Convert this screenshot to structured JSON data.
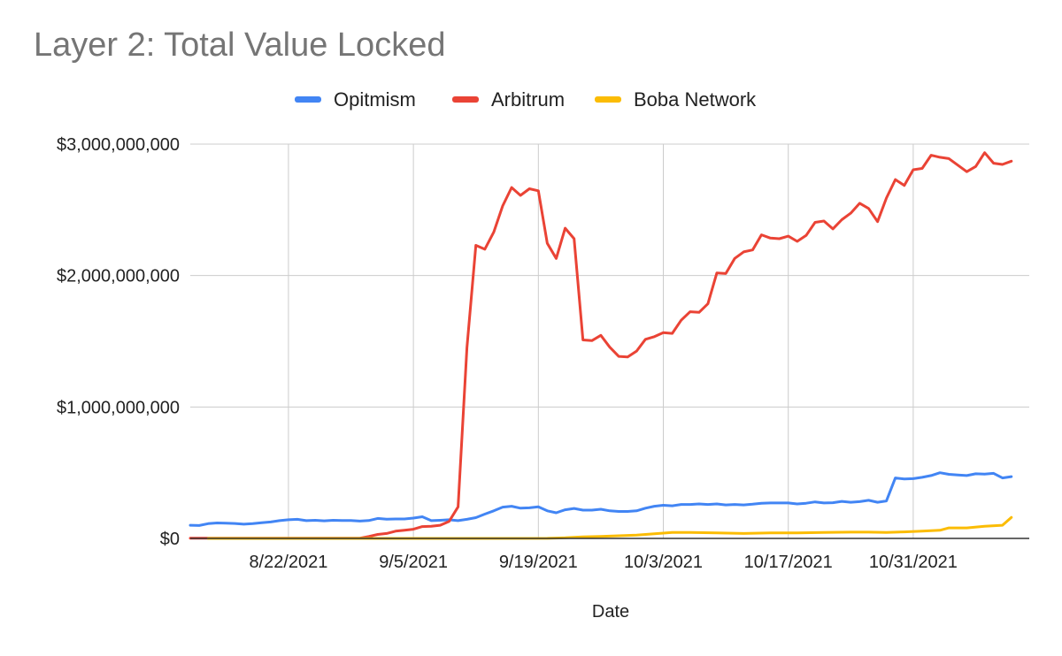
{
  "chart_data": {
    "type": "line",
    "title": "Layer 2: Total Value Locked",
    "xlabel": "Date",
    "ylabel": "",
    "x_start": "2021-08-11",
    "x_end": "2021-11-13",
    "ylim": [
      0,
      3000000000
    ],
    "y_ticks": [
      {
        "value": 0,
        "label": "$0"
      },
      {
        "value": 1000000000,
        "label": "$1,000,000,000"
      },
      {
        "value": 2000000000,
        "label": "$2,000,000,000"
      },
      {
        "value": 3000000000,
        "label": "$3,000,000,000"
      }
    ],
    "x_ticks": [
      {
        "date": "2021-08-22",
        "label": "8/22/2021"
      },
      {
        "date": "2021-09-05",
        "label": "9/5/2021"
      },
      {
        "date": "2021-09-19",
        "label": "9/19/2021"
      },
      {
        "date": "2021-10-03",
        "label": "10/3/2021"
      },
      {
        "date": "2021-10-17",
        "label": "10/17/2021"
      },
      {
        "date": "2021-10-31",
        "label": "10/31/2021"
      }
    ],
    "grid": true,
    "legend_position": "top",
    "series": [
      {
        "name": "Opitmism",
        "color": "#4285f4",
        "points": [
          [
            "2021-08-11",
            100000000
          ],
          [
            "2021-08-12",
            98000000
          ],
          [
            "2021-08-13",
            112000000
          ],
          [
            "2021-08-14",
            118000000
          ],
          [
            "2021-08-15",
            116000000
          ],
          [
            "2021-08-16",
            114000000
          ],
          [
            "2021-08-17",
            108000000
          ],
          [
            "2021-08-18",
            112000000
          ],
          [
            "2021-08-19",
            120000000
          ],
          [
            "2021-08-20",
            125000000
          ],
          [
            "2021-08-21",
            135000000
          ],
          [
            "2021-08-22",
            142000000
          ],
          [
            "2021-08-23",
            145000000
          ],
          [
            "2021-08-24",
            135000000
          ],
          [
            "2021-08-25",
            138000000
          ],
          [
            "2021-08-26",
            134000000
          ],
          [
            "2021-08-27",
            138000000
          ],
          [
            "2021-08-28",
            136000000
          ],
          [
            "2021-08-29",
            136000000
          ],
          [
            "2021-08-30",
            132000000
          ],
          [
            "2021-08-31",
            136000000
          ],
          [
            "2021-09-01",
            152000000
          ],
          [
            "2021-09-02",
            146000000
          ],
          [
            "2021-09-03",
            148000000
          ],
          [
            "2021-09-04",
            148000000
          ],
          [
            "2021-09-05",
            155000000
          ],
          [
            "2021-09-06",
            165000000
          ],
          [
            "2021-09-07",
            135000000
          ],
          [
            "2021-09-08",
            138000000
          ],
          [
            "2021-09-09",
            142000000
          ],
          [
            "2021-09-10",
            135000000
          ],
          [
            "2021-09-11",
            145000000
          ],
          [
            "2021-09-12",
            158000000
          ],
          [
            "2021-09-13",
            185000000
          ],
          [
            "2021-09-14",
            210000000
          ],
          [
            "2021-09-15",
            238000000
          ],
          [
            "2021-09-16",
            245000000
          ],
          [
            "2021-09-17",
            230000000
          ],
          [
            "2021-09-18",
            233000000
          ],
          [
            "2021-09-19",
            240000000
          ],
          [
            "2021-09-20",
            210000000
          ],
          [
            "2021-09-21",
            195000000
          ],
          [
            "2021-09-22",
            218000000
          ],
          [
            "2021-09-23",
            228000000
          ],
          [
            "2021-09-24",
            215000000
          ],
          [
            "2021-09-25",
            215000000
          ],
          [
            "2021-09-26",
            222000000
          ],
          [
            "2021-09-27",
            210000000
          ],
          [
            "2021-09-28",
            205000000
          ],
          [
            "2021-09-29",
            205000000
          ],
          [
            "2021-09-30",
            210000000
          ],
          [
            "2021-10-01",
            230000000
          ],
          [
            "2021-10-02",
            245000000
          ],
          [
            "2021-10-03",
            252000000
          ],
          [
            "2021-10-04",
            248000000
          ],
          [
            "2021-10-05",
            258000000
          ],
          [
            "2021-10-06",
            258000000
          ],
          [
            "2021-10-07",
            262000000
          ],
          [
            "2021-10-08",
            258000000
          ],
          [
            "2021-10-09",
            262000000
          ],
          [
            "2021-10-10",
            255000000
          ],
          [
            "2021-10-11",
            258000000
          ],
          [
            "2021-10-12",
            255000000
          ],
          [
            "2021-10-13",
            260000000
          ],
          [
            "2021-10-14",
            268000000
          ],
          [
            "2021-10-15",
            270000000
          ],
          [
            "2021-10-16",
            270000000
          ],
          [
            "2021-10-17",
            270000000
          ],
          [
            "2021-10-18",
            262000000
          ],
          [
            "2021-10-19",
            268000000
          ],
          [
            "2021-10-20",
            278000000
          ],
          [
            "2021-10-21",
            270000000
          ],
          [
            "2021-10-22",
            272000000
          ],
          [
            "2021-10-23",
            282000000
          ],
          [
            "2021-10-24",
            275000000
          ],
          [
            "2021-10-25",
            280000000
          ],
          [
            "2021-10-26",
            290000000
          ],
          [
            "2021-10-27",
            275000000
          ],
          [
            "2021-10-28",
            285000000
          ],
          [
            "2021-10-29",
            460000000
          ],
          [
            "2021-10-30",
            452000000
          ],
          [
            "2021-10-31",
            455000000
          ],
          [
            "2021-11-01",
            465000000
          ],
          [
            "2021-11-02",
            478000000
          ],
          [
            "2021-11-03",
            500000000
          ],
          [
            "2021-11-04",
            488000000
          ],
          [
            "2021-11-05",
            482000000
          ],
          [
            "2021-11-06",
            478000000
          ],
          [
            "2021-11-07",
            492000000
          ],
          [
            "2021-11-08",
            490000000
          ],
          [
            "2021-11-09",
            495000000
          ],
          [
            "2021-11-10",
            460000000
          ],
          [
            "2021-11-11",
            470000000
          ]
        ]
      },
      {
        "name": "Arbitrum",
        "color": "#ea4335",
        "points": [
          [
            "2021-08-11",
            2000000
          ],
          [
            "2021-08-12",
            2000000
          ],
          [
            "2021-08-13",
            2000000
          ],
          [
            "2021-08-14",
            2000000
          ],
          [
            "2021-08-15",
            2000000
          ],
          [
            "2021-08-16",
            2000000
          ],
          [
            "2021-08-17",
            2000000
          ],
          [
            "2021-08-18",
            2000000
          ],
          [
            "2021-08-19",
            2000000
          ],
          [
            "2021-08-20",
            2000000
          ],
          [
            "2021-08-21",
            2000000
          ],
          [
            "2021-08-22",
            2000000
          ],
          [
            "2021-08-23",
            2000000
          ],
          [
            "2021-08-24",
            2000000
          ],
          [
            "2021-08-25",
            2000000
          ],
          [
            "2021-08-26",
            2000000
          ],
          [
            "2021-08-27",
            2000000
          ],
          [
            "2021-08-28",
            2000000
          ],
          [
            "2021-08-29",
            2000000
          ],
          [
            "2021-08-30",
            2000000
          ],
          [
            "2021-08-31",
            15000000
          ],
          [
            "2021-09-01",
            30000000
          ],
          [
            "2021-09-02",
            38000000
          ],
          [
            "2021-09-03",
            55000000
          ],
          [
            "2021-09-04",
            62000000
          ],
          [
            "2021-09-05",
            70000000
          ],
          [
            "2021-09-06",
            90000000
          ],
          [
            "2021-09-07",
            92000000
          ],
          [
            "2021-09-08",
            100000000
          ],
          [
            "2021-09-09",
            130000000
          ],
          [
            "2021-09-10",
            240000000
          ],
          [
            "2021-09-11",
            1450000000
          ],
          [
            "2021-09-12",
            2230000000
          ],
          [
            "2021-09-13",
            2200000000
          ],
          [
            "2021-09-14",
            2330000000
          ],
          [
            "2021-09-15",
            2530000000
          ],
          [
            "2021-09-16",
            2670000000
          ],
          [
            "2021-09-17",
            2610000000
          ],
          [
            "2021-09-18",
            2660000000
          ],
          [
            "2021-09-19",
            2645000000
          ],
          [
            "2021-09-20",
            2245000000
          ],
          [
            "2021-09-21",
            2130000000
          ],
          [
            "2021-09-22",
            2360000000
          ],
          [
            "2021-09-23",
            2280000000
          ],
          [
            "2021-09-24",
            1510000000
          ],
          [
            "2021-09-25",
            1505000000
          ],
          [
            "2021-09-26",
            1545000000
          ],
          [
            "2021-09-27",
            1455000000
          ],
          [
            "2021-09-28",
            1385000000
          ],
          [
            "2021-09-29",
            1380000000
          ],
          [
            "2021-09-30",
            1425000000
          ],
          [
            "2021-10-01",
            1515000000
          ],
          [
            "2021-10-02",
            1535000000
          ],
          [
            "2021-10-03",
            1565000000
          ],
          [
            "2021-10-04",
            1560000000
          ],
          [
            "2021-10-05",
            1660000000
          ],
          [
            "2021-10-06",
            1725000000
          ],
          [
            "2021-10-07",
            1720000000
          ],
          [
            "2021-10-08",
            1785000000
          ],
          [
            "2021-10-09",
            2020000000
          ],
          [
            "2021-10-10",
            2015000000
          ],
          [
            "2021-10-11",
            2130000000
          ],
          [
            "2021-10-12",
            2180000000
          ],
          [
            "2021-10-13",
            2195000000
          ],
          [
            "2021-10-14",
            2310000000
          ],
          [
            "2021-10-15",
            2285000000
          ],
          [
            "2021-10-16",
            2280000000
          ],
          [
            "2021-10-17",
            2300000000
          ],
          [
            "2021-10-18",
            2260000000
          ],
          [
            "2021-10-19",
            2305000000
          ],
          [
            "2021-10-20",
            2405000000
          ],
          [
            "2021-10-21",
            2415000000
          ],
          [
            "2021-10-22",
            2355000000
          ],
          [
            "2021-10-23",
            2425000000
          ],
          [
            "2021-10-24",
            2475000000
          ],
          [
            "2021-10-25",
            2550000000
          ],
          [
            "2021-10-26",
            2510000000
          ],
          [
            "2021-10-27",
            2410000000
          ],
          [
            "2021-10-28",
            2590000000
          ],
          [
            "2021-10-29",
            2730000000
          ],
          [
            "2021-10-30",
            2685000000
          ],
          [
            "2021-10-31",
            2805000000
          ],
          [
            "2021-11-01",
            2815000000
          ],
          [
            "2021-11-02",
            2915000000
          ],
          [
            "2021-11-03",
            2900000000
          ],
          [
            "2021-11-04",
            2890000000
          ],
          [
            "2021-11-05",
            2840000000
          ],
          [
            "2021-11-06",
            2790000000
          ],
          [
            "2021-11-07",
            2830000000
          ],
          [
            "2021-11-08",
            2935000000
          ],
          [
            "2021-11-09",
            2855000000
          ],
          [
            "2021-11-10",
            2845000000
          ],
          [
            "2021-11-11",
            2870000000
          ]
        ]
      },
      {
        "name": "Boba Network",
        "color": "#fbbc04",
        "points": [
          [
            "2021-08-13",
            0
          ],
          [
            "2021-08-20",
            0
          ],
          [
            "2021-09-01",
            0
          ],
          [
            "2021-09-10",
            0
          ],
          [
            "2021-09-20",
            1000000
          ],
          [
            "2021-09-22",
            5000000
          ],
          [
            "2021-09-24",
            12000000
          ],
          [
            "2021-09-26",
            15000000
          ],
          [
            "2021-09-28",
            20000000
          ],
          [
            "2021-09-30",
            25000000
          ],
          [
            "2021-10-02",
            35000000
          ],
          [
            "2021-10-04",
            45000000
          ],
          [
            "2021-10-06",
            45000000
          ],
          [
            "2021-10-09",
            42000000
          ],
          [
            "2021-10-12",
            38000000
          ],
          [
            "2021-10-15",
            42000000
          ],
          [
            "2021-10-18",
            42000000
          ],
          [
            "2021-10-21",
            45000000
          ],
          [
            "2021-10-24",
            48000000
          ],
          [
            "2021-10-26",
            48000000
          ],
          [
            "2021-10-28",
            45000000
          ],
          [
            "2021-10-30",
            50000000
          ],
          [
            "2021-11-01",
            55000000
          ],
          [
            "2021-11-03",
            62000000
          ],
          [
            "2021-11-04",
            80000000
          ],
          [
            "2021-11-06",
            80000000
          ],
          [
            "2021-11-08",
            92000000
          ],
          [
            "2021-11-10",
            100000000
          ],
          [
            "2021-11-11",
            160000000
          ]
        ]
      }
    ]
  }
}
